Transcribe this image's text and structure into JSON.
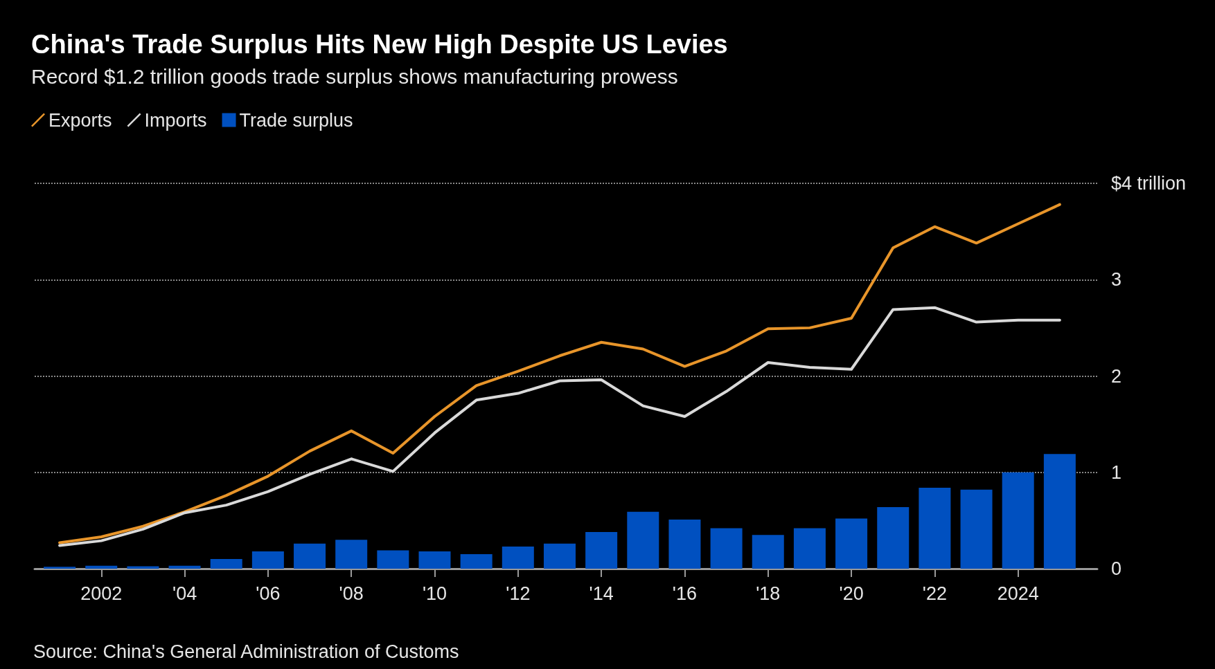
{
  "chart_data": {
    "type": "line",
    "title": "China's Trade Surplus Hits New High Despite US Levies",
    "subtitle": "Record $1.2 trillion goods trade surplus shows manufacturing prowess",
    "annotations": [
      "Source: China's General Administration of Customs"
    ],
    "x": [
      2001,
      2002,
      2003,
      2004,
      2005,
      2006,
      2007,
      2008,
      2009,
      2010,
      2011,
      2012,
      2013,
      2014,
      2015,
      2016,
      2017,
      2018,
      2019,
      2020,
      2021,
      2022,
      2023,
      2024,
      2025
    ],
    "series": [
      {
        "name": "Exports",
        "color": "#e8952a",
        "values": [
          0.27,
          0.33,
          0.44,
          0.59,
          0.76,
          0.96,
          1.22,
          1.43,
          1.2,
          1.58,
          1.9,
          2.05,
          2.21,
          2.35,
          2.28,
          2.1,
          2.26,
          2.49,
          2.5,
          2.6,
          3.33,
          3.55,
          3.38,
          3.58,
          3.78
        ]
      },
      {
        "name": "Imports",
        "color": "#d9d9d9",
        "values": [
          0.24,
          0.29,
          0.41,
          0.58,
          0.66,
          0.8,
          0.98,
          1.14,
          1.01,
          1.41,
          1.75,
          1.82,
          1.95,
          1.96,
          1.69,
          1.58,
          1.84,
          2.14,
          2.09,
          2.07,
          2.69,
          2.71,
          2.56,
          2.58,
          2.58
        ]
      },
      {
        "name": "Trade surplus",
        "type": "bar",
        "color": "#0050c0",
        "values": [
          0.02,
          0.03,
          0.025,
          0.03,
          0.1,
          0.18,
          0.26,
          0.3,
          0.19,
          0.18,
          0.15,
          0.23,
          0.26,
          0.38,
          0.59,
          0.51,
          0.42,
          0.35,
          0.42,
          0.52,
          0.64,
          0.84,
          0.82,
          1.0,
          1.19
        ]
      }
    ],
    "xlim": [
      2000.4,
      2025.9
    ],
    "xticks": [
      {
        "value": 2002,
        "label": "2002"
      },
      {
        "value": 2004,
        "label": "'04"
      },
      {
        "value": 2006,
        "label": "'06"
      },
      {
        "value": 2008,
        "label": "'08"
      },
      {
        "value": 2010,
        "label": "'10"
      },
      {
        "value": 2012,
        "label": "'12"
      },
      {
        "value": 2014,
        "label": "'14"
      },
      {
        "value": 2016,
        "label": "'16"
      },
      {
        "value": 2018,
        "label": "'18"
      },
      {
        "value": 2020,
        "label": "'20"
      },
      {
        "value": 2022,
        "label": "'22"
      },
      {
        "value": 2024,
        "label": "2024"
      }
    ],
    "ylim": [
      0,
      4
    ],
    "yticks": [
      0,
      1,
      2,
      3,
      {
        "value": 4,
        "label": "$4 trillion"
      }
    ],
    "grid": "y",
    "legend": "top left",
    "marker": "none",
    "line_style": "solid"
  }
}
